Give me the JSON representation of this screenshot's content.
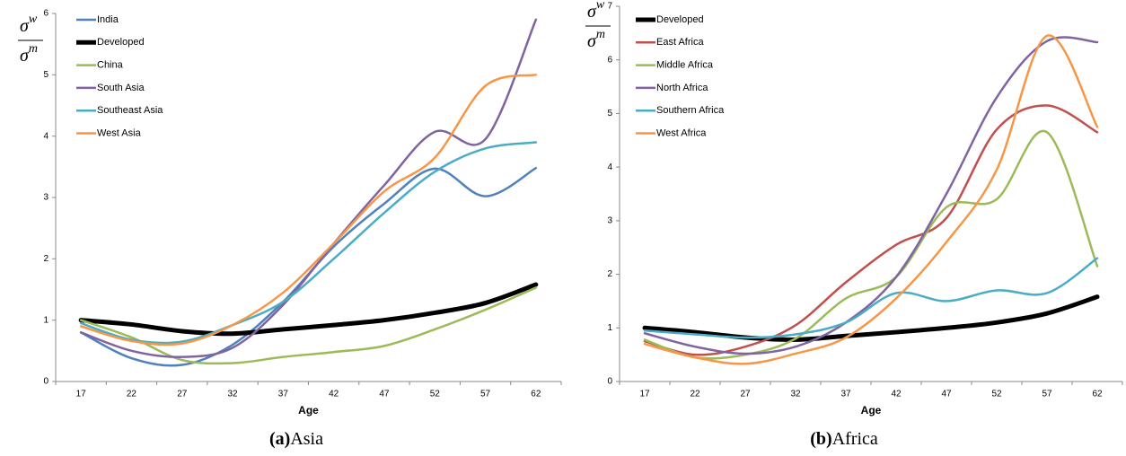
{
  "chart_data": [
    {
      "type": "line",
      "caption_label": "(a)",
      "caption": "Asia",
      "xlabel": "Age",
      "ylabel": {
        "numerator": {
          "base": "σ",
          "sup": "w"
        },
        "denominator": {
          "base": "σ",
          "sup": "m"
        }
      },
      "categories": [
        "17",
        "22",
        "27",
        "32",
        "37",
        "42",
        "47",
        "52",
        "57",
        "62"
      ],
      "ylim": [
        0,
        6
      ],
      "yticks": [
        0,
        1,
        2,
        3,
        4,
        5,
        6
      ],
      "legend": "upper left",
      "series": [
        {
          "name": "India",
          "color": "#4f81bd",
          "values": [
            0.8,
            0.38,
            0.27,
            0.6,
            1.3,
            2.2,
            2.9,
            3.47,
            3.02,
            3.48
          ]
        },
        {
          "name": "Developed",
          "color": "#000000",
          "values": [
            1.0,
            0.93,
            0.82,
            0.78,
            0.85,
            0.92,
            1.0,
            1.12,
            1.28,
            1.58
          ]
        },
        {
          "name": "China",
          "color": "#9bbb59",
          "values": [
            1.0,
            0.72,
            0.35,
            0.3,
            0.4,
            0.48,
            0.58,
            0.85,
            1.17,
            1.53
          ]
        },
        {
          "name": "South Asia",
          "color": "#8064a2",
          "values": [
            0.8,
            0.5,
            0.4,
            0.55,
            1.25,
            2.25,
            3.2,
            4.07,
            3.95,
            5.9
          ]
        },
        {
          "name": "Southeast Asia",
          "color": "#4bacc6",
          "values": [
            0.95,
            0.68,
            0.65,
            0.92,
            1.3,
            2.0,
            2.75,
            3.42,
            3.8,
            3.9
          ]
        },
        {
          "name": "West Asia",
          "color": "#f79646",
          "values": [
            0.9,
            0.66,
            0.62,
            0.92,
            1.45,
            2.25,
            3.1,
            3.65,
            4.82,
            5.0
          ]
        }
      ]
    },
    {
      "type": "line",
      "caption_label": "(b)",
      "caption": "Africa",
      "xlabel": "Age",
      "ylabel": {
        "numerator": {
          "base": "σ",
          "sup": "w"
        },
        "denominator": {
          "base": "σ",
          "sup": "m"
        }
      },
      "categories": [
        "17",
        "22",
        "27",
        "32",
        "37",
        "42",
        "47",
        "52",
        "57",
        "62"
      ],
      "ylim": [
        0,
        7
      ],
      "yticks": [
        0,
        1,
        2,
        3,
        4,
        5,
        6,
        7
      ],
      "legend": "upper left",
      "series": [
        {
          "name": "Developed",
          "color": "#000000",
          "values": [
            1.0,
            0.92,
            0.82,
            0.78,
            0.85,
            0.92,
            1.0,
            1.1,
            1.27,
            1.58
          ]
        },
        {
          "name": "East Africa",
          "color": "#c0504d",
          "values": [
            0.75,
            0.5,
            0.65,
            1.05,
            1.85,
            2.55,
            3.05,
            4.7,
            5.15,
            4.65
          ]
        },
        {
          "name": "Middle Africa",
          "color": "#9bbb59",
          "values": [
            0.78,
            0.45,
            0.5,
            0.8,
            1.55,
            1.95,
            3.25,
            3.4,
            4.65,
            2.15
          ]
        },
        {
          "name": "North Africa",
          "color": "#8064a2",
          "values": [
            0.9,
            0.65,
            0.52,
            0.65,
            1.1,
            1.95,
            3.5,
            5.3,
            6.35,
            6.33
          ]
        },
        {
          "name": "Southern Africa",
          "color": "#4bacc6",
          "values": [
            0.95,
            0.88,
            0.82,
            0.88,
            1.1,
            1.65,
            1.5,
            1.7,
            1.65,
            2.3
          ]
        },
        {
          "name": "West Africa",
          "color": "#f79646",
          "values": [
            0.7,
            0.45,
            0.33,
            0.52,
            0.82,
            1.55,
            2.6,
            3.95,
            6.45,
            4.75
          ]
        }
      ]
    }
  ]
}
